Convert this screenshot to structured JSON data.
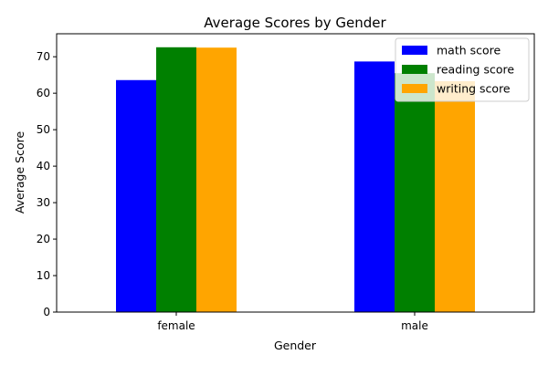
{
  "chart_data": {
    "type": "bar",
    "title": "Average Scores by Gender",
    "xlabel": "Gender",
    "ylabel": "Average Score",
    "categories": [
      "female",
      "male"
    ],
    "series": [
      {
        "name": "math score",
        "values": [
          63.6,
          68.7
        ],
        "color": "#0000ff"
      },
      {
        "name": "reading score",
        "values": [
          72.6,
          65.5
        ],
        "color": "#008000"
      },
      {
        "name": "writing score",
        "values": [
          72.5,
          63.3
        ],
        "color": "#ffa500"
      }
    ],
    "ylim": [
      0,
      76.3
    ],
    "yticks": [
      0,
      10,
      20,
      30,
      40,
      50,
      60,
      70
    ],
    "legend": "top-right",
    "grid": false
  }
}
